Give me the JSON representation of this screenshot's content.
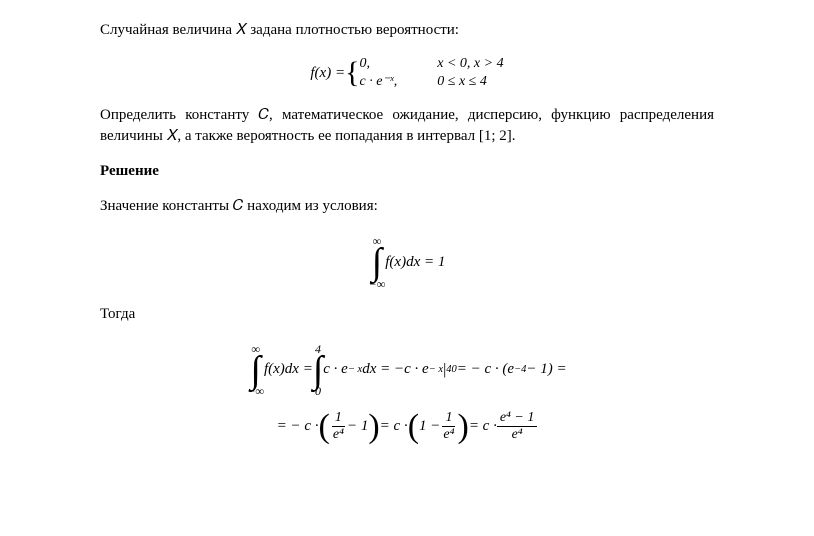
{
  "fontFamily": "Times New Roman",
  "textColor": "#000000",
  "backgroundColor": "#ffffff",
  "p1": "Случайная величина 𝑋 задана плотностью вероятности:",
  "formula1": {
    "lhs": "f(x) = ",
    "case1": "0,",
    "case2": "c · e⁻ˣ,",
    "cond1": "x < 0,  x > 4",
    "cond2": "0 ≤ x ≤ 4"
  },
  "p2": "Определить константу 𝐶, математическое ожидание, дисперсию, функцию распределения величины 𝑋, а также вероятность ее попадания в  интервал [1; 2].",
  "heading": "Решение",
  "p3": "Значение константы 𝐶 находим из условия:",
  "formula2": {
    "upper": "∞",
    "lower": "−∞",
    "body": " f(x)dx = 1"
  },
  "p4": "Тогда",
  "formula3": {
    "int1_upper": "∞",
    "int1_lower": "−∞",
    "part1": " f(x)dx = ",
    "int2_upper": "4",
    "int2_lower": "0",
    "part2a": " c · e",
    "exp1": "− x",
    "part2b": "dx = −c · e",
    "exp2": "− x",
    "eval": "|",
    "eval_upper": "4",
    "eval_lower": "0",
    "part3a": " = − c · (e",
    "exp3": "−4",
    "part3b": " − 1) =",
    "line2a": "= − c · ",
    "frac1_num": "1",
    "frac1_den": "e⁴",
    "line2b": " − 1",
    "line2c": " = c · ",
    "line2d": "1 − ",
    "frac2_num": "1",
    "frac2_den": "e⁴",
    "line2e": " = c · ",
    "frac3_num": "e⁴ − 1",
    "frac3_den": "e⁴"
  }
}
